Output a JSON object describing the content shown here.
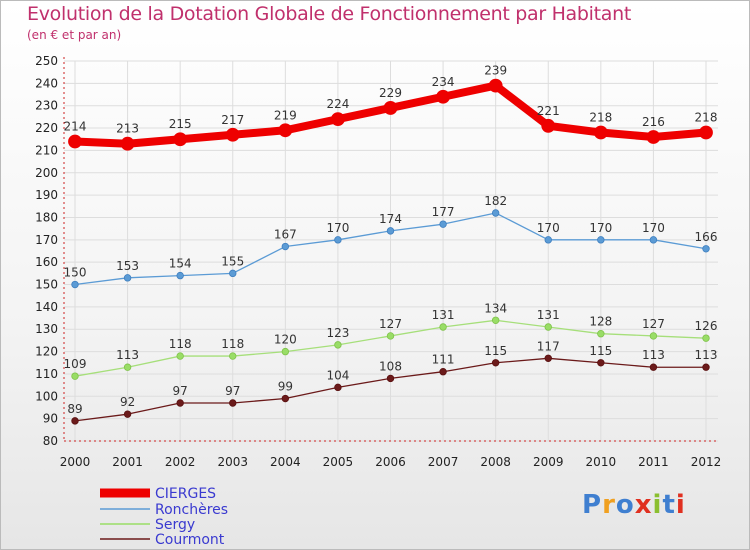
{
  "title": "Evolution de la Dotation Globale de Fonctionnement par Habitant",
  "subtitle": "(en € et par an)",
  "logo": {
    "text": "Proxiti",
    "colors": [
      "#3f7fd0",
      "#f0a020",
      "#3f7fd0",
      "#e03020",
      "#8bbf30",
      "#3f7fd0",
      "#e03020"
    ]
  },
  "chart_data": {
    "type": "line",
    "title": "Evolution de la Dotation Globale de Fonctionnement par Habitant",
    "subtitle": "(en € et par an)",
    "xlabel": "",
    "ylabel": "",
    "x": [
      "2000",
      "2001",
      "2002",
      "2003",
      "2004",
      "2005",
      "2006",
      "2007",
      "2008",
      "2009",
      "2010",
      "2011",
      "2012"
    ],
    "ylim": [
      80,
      250
    ],
    "yticks": [
      80,
      90,
      100,
      110,
      120,
      130,
      140,
      150,
      160,
      170,
      180,
      190,
      200,
      210,
      220,
      230,
      240,
      250
    ],
    "grid": true,
    "legend": "bottom-left",
    "series": [
      {
        "name": "CIERGES",
        "color": "#ee0000",
        "values": [
          214,
          213,
          215,
          217,
          219,
          224,
          229,
          234,
          239,
          221,
          218,
          216,
          218
        ]
      },
      {
        "name": "Ronchères",
        "color": "#5b9bd5",
        "values": [
          150,
          153,
          154,
          155,
          167,
          170,
          174,
          177,
          182,
          170,
          170,
          170,
          166
        ]
      },
      {
        "name": "Sergy",
        "color": "#99dd66",
        "values": [
          109,
          113,
          118,
          118,
          120,
          123,
          127,
          131,
          134,
          131,
          128,
          127,
          126
        ]
      },
      {
        "name": "Courmont",
        "color": "#6b1a1a",
        "values": [
          89,
          92,
          97,
          97,
          99,
          104,
          108,
          111,
          115,
          117,
          115,
          113,
          113
        ]
      }
    ]
  }
}
